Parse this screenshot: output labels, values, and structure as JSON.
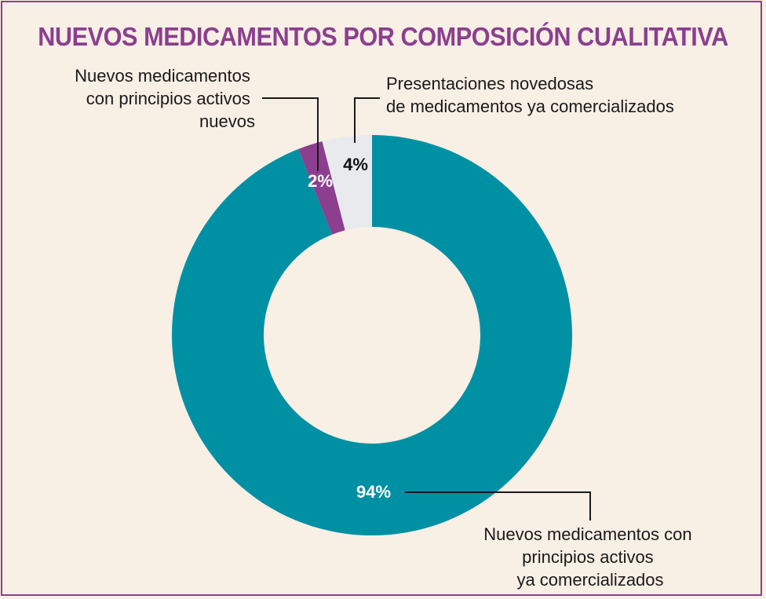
{
  "chart_data": {
    "type": "pie",
    "title": "NUEVOS MEDICAMENTOS POR COMPOSICIÓN CUALITATIVA",
    "donut": true,
    "slices": [
      {
        "label_lines": [
          "Nuevos medicamentos con",
          "principios activos",
          "ya comercializados"
        ],
        "value": 94,
        "value_label": "94%",
        "color": "#0090a4"
      },
      {
        "label_lines": [
          "Nuevos medicamentos",
          "con principios activos",
          "nuevos"
        ],
        "value": 2,
        "value_label": "2%",
        "color": "#8b3f8e"
      },
      {
        "label_lines": [
          "Presentaciones novedosas",
          "de medicamentos ya comercializados"
        ],
        "value": 4,
        "value_label": "4%",
        "color": "#e8eaee"
      }
    ]
  },
  "colors": {
    "background": "#f8efe5",
    "border": "#8b3f8e",
    "title": "#8b3f8e"
  }
}
